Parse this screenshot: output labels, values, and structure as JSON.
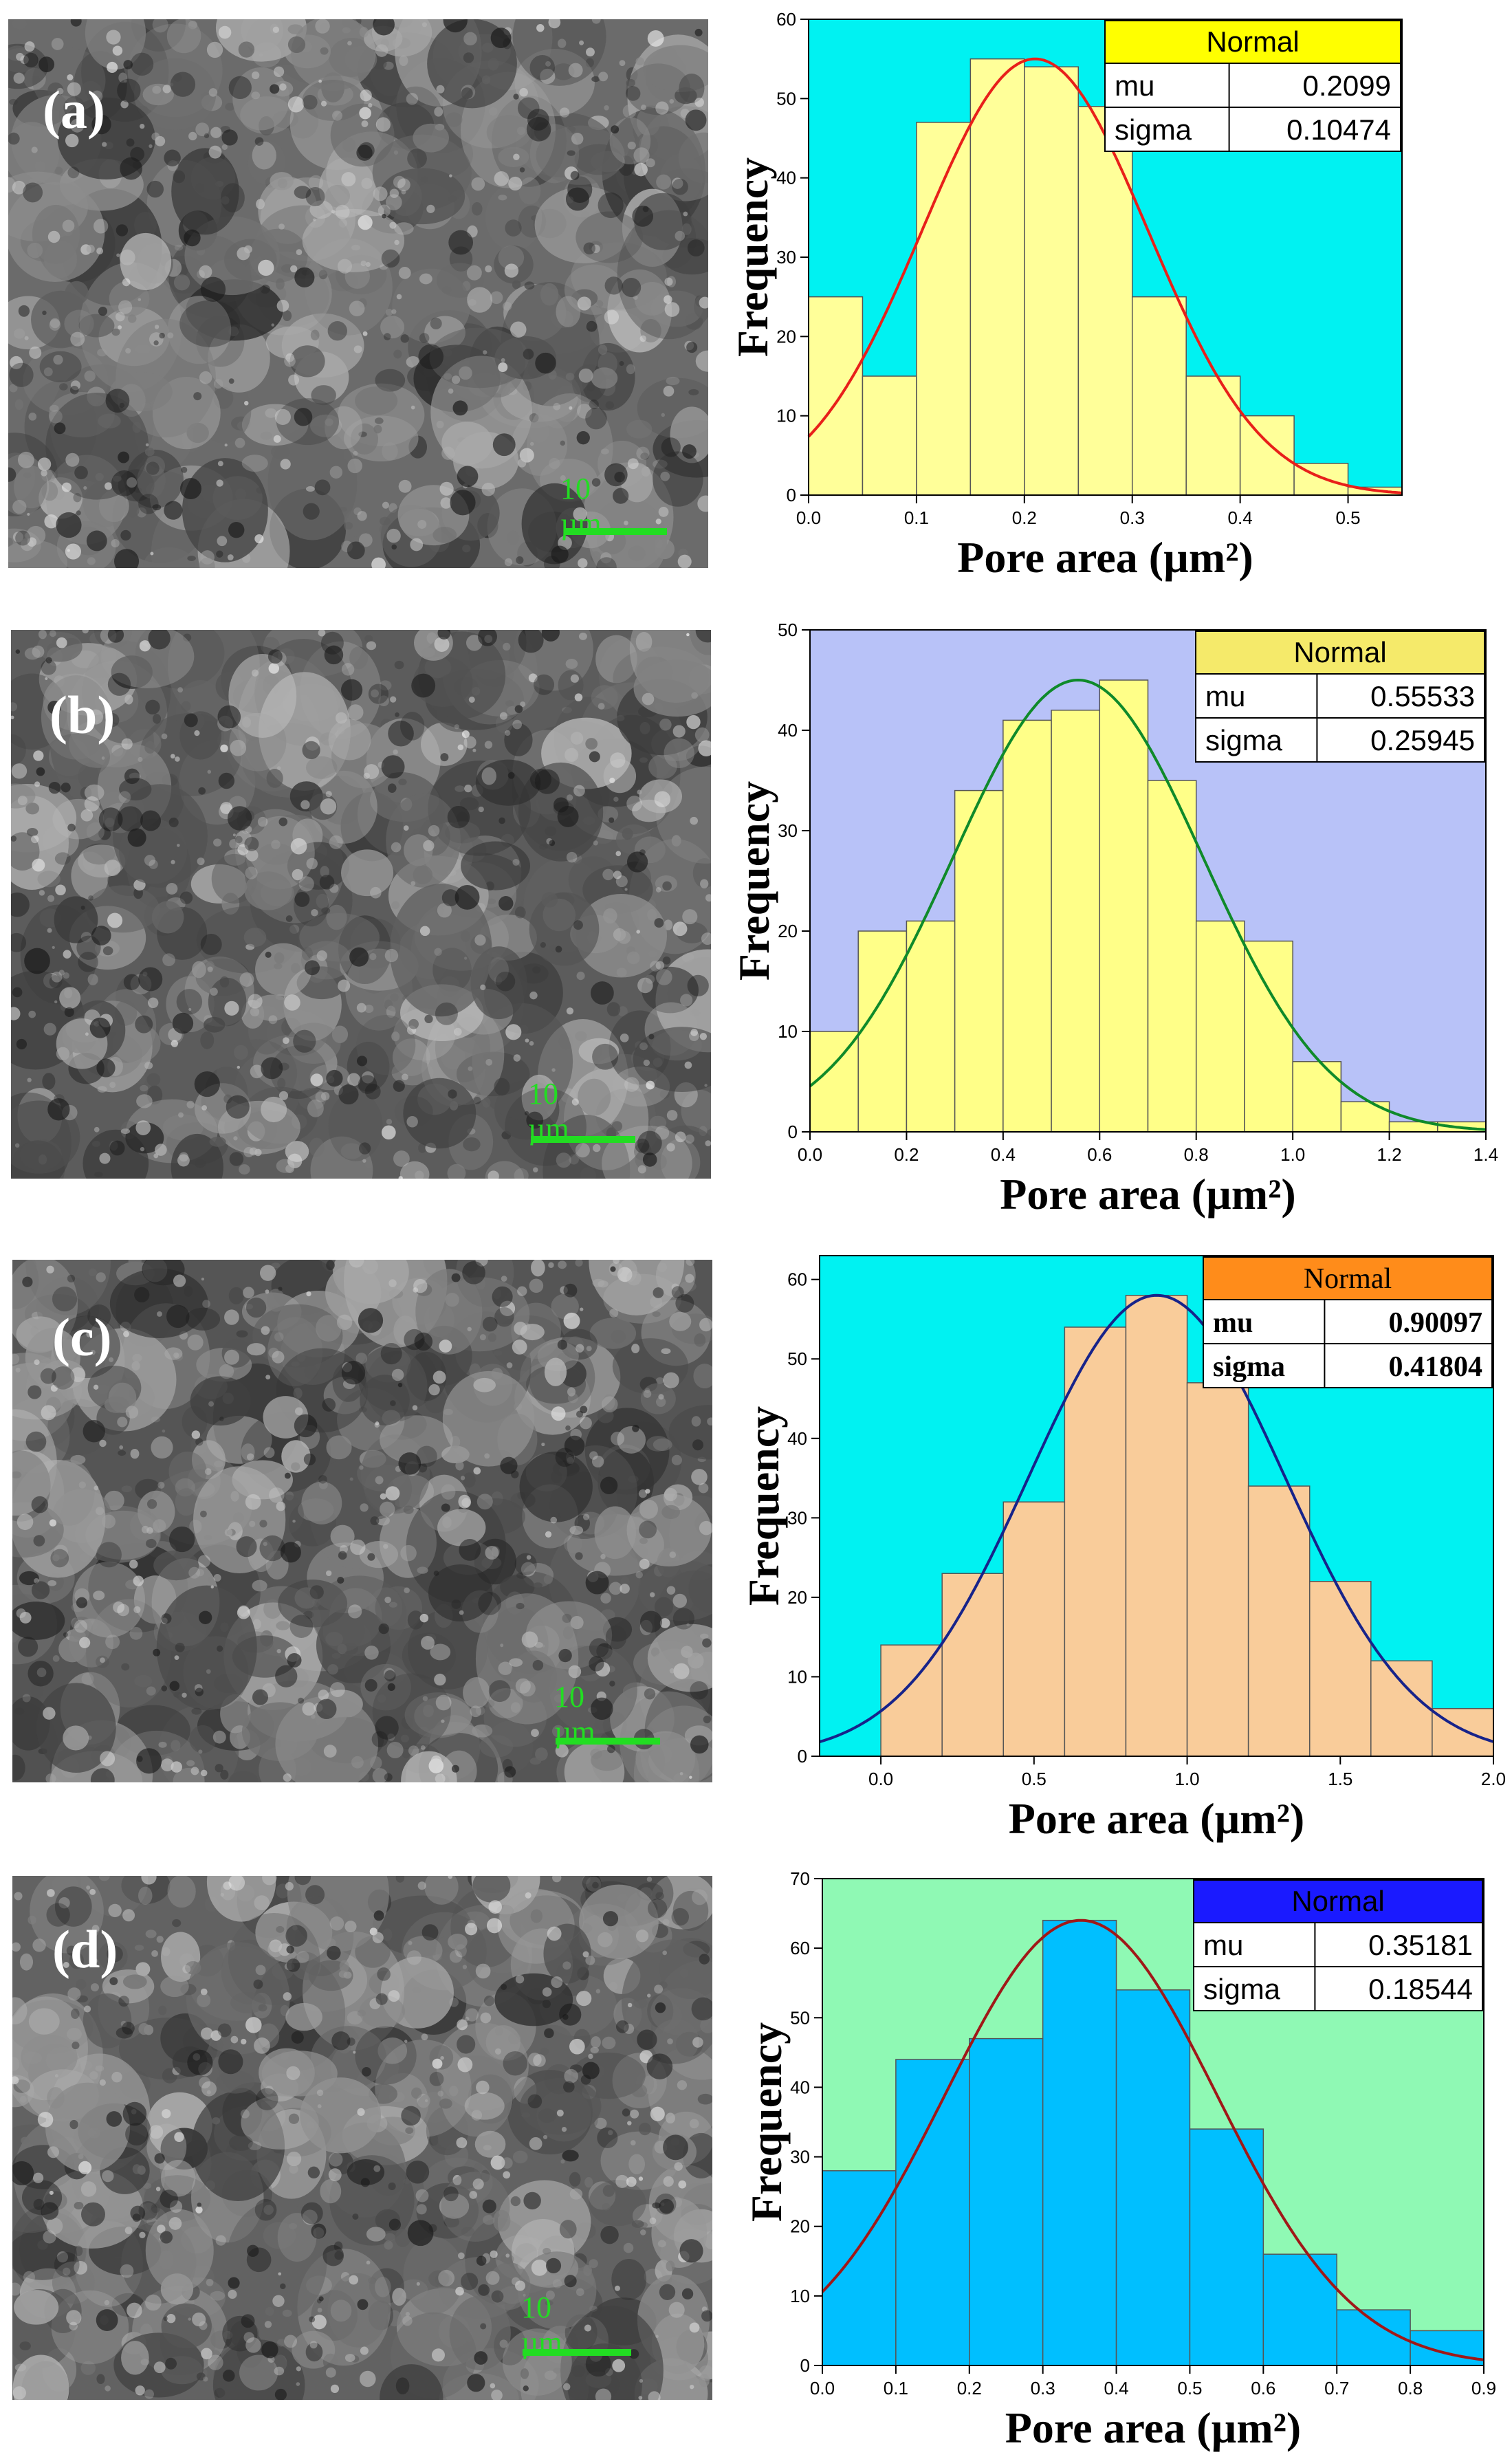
{
  "scale_bar_label": "10 µm",
  "panels": [
    {
      "label": "(a)",
      "sem_tone": "#6b6b6b",
      "chart_data": {
        "type": "bar",
        "x_tick_labels": [
          "0.0",
          "0.1",
          "0.2",
          "0.3",
          "0.4",
          "0.5"
        ],
        "x_ticks": [
          0.0,
          0.1,
          0.2,
          0.3,
          0.4,
          0.5
        ],
        "y_ticks": [
          0,
          10,
          20,
          30,
          40,
          50,
          60
        ],
        "xlim": [
          0.0,
          0.55
        ],
        "ylim": [
          0,
          60
        ],
        "bin_width": 0.05,
        "bin_starts": [
          0.0,
          0.05,
          0.1,
          0.15,
          0.2,
          0.25,
          0.3,
          0.35,
          0.4,
          0.45,
          0.5
        ],
        "values": [
          25,
          15,
          47,
          55,
          54,
          49,
          25,
          15,
          10,
          4,
          1
        ],
        "xlabel": "Pore area (µm²)",
        "ylabel": "Frequency",
        "fit": {
          "type": "normal",
          "mu": 0.2099,
          "sigma": 0.10474,
          "peak": 55
        },
        "legend": {
          "title": "Normal",
          "rows": [
            [
              "mu",
              "0.2099"
            ],
            [
              "sigma",
              "0.10474"
            ]
          ],
          "position": "top-right",
          "bold": false
        },
        "colors": {
          "plot_bg": "#00f2f2",
          "bar": "#ffff99",
          "curve": "#e8201a",
          "legend_header": "#ffff00"
        }
      }
    },
    {
      "label": "(b)",
      "sem_tone": "#5c5c5c",
      "chart_data": {
        "type": "bar",
        "x_tick_labels": [
          "0.0",
          "0.2",
          "0.4",
          "0.6",
          "0.8",
          "1.0",
          "1.2",
          "1.4"
        ],
        "x_ticks": [
          0.0,
          0.2,
          0.4,
          0.6,
          0.8,
          1.0,
          1.2,
          1.4
        ],
        "y_ticks": [
          0,
          10,
          20,
          30,
          40,
          50
        ],
        "xlim": [
          0.0,
          1.4
        ],
        "ylim": [
          0,
          50
        ],
        "bin_width": 0.1,
        "bin_starts": [
          0.0,
          0.1,
          0.2,
          0.3,
          0.4,
          0.5,
          0.6,
          0.7,
          0.8,
          0.9,
          1.0,
          1.1,
          1.2,
          1.3
        ],
        "values": [
          10,
          20,
          21,
          34,
          41,
          42,
          45,
          35,
          21,
          19,
          7,
          3,
          1,
          1
        ],
        "xlabel": "Pore area (µm²)",
        "ylabel": "Frequency",
        "fit": {
          "type": "normal",
          "mu": 0.55533,
          "sigma": 0.25945,
          "peak": 45
        },
        "legend": {
          "title": "Normal",
          "rows": [
            [
              "mu",
              "0.55533"
            ],
            [
              "sigma",
              "0.25945"
            ]
          ],
          "position": "top-right",
          "bold": false
        },
        "colors": {
          "plot_bg": "#b8c2f8",
          "bar": "#ffff88",
          "curve": "#0f8a2a",
          "legend_header": "#f5ea6a"
        }
      }
    },
    {
      "label": "(c)",
      "sem_tone": "#555555",
      "chart_data": {
        "type": "bar",
        "x_tick_labels": [
          "0.0",
          "0.5",
          "1.0",
          "1.5",
          "2.0"
        ],
        "x_ticks": [
          0.0,
          0.5,
          1.0,
          1.5,
          2.0
        ],
        "y_ticks": [
          0,
          10,
          20,
          30,
          40,
          50,
          60
        ],
        "xlim": [
          -0.2,
          2.0
        ],
        "ylim": [
          0,
          63
        ],
        "bin_width": 0.2,
        "bin_starts": [
          0.0,
          0.2,
          0.4,
          0.6,
          0.8,
          1.0,
          1.2,
          1.4,
          1.6,
          1.8
        ],
        "values": [
          14,
          23,
          32,
          54,
          58,
          47,
          34,
          22,
          12,
          6
        ],
        "xlabel": "Pore area (µm²)",
        "ylabel": "Frequency",
        "fit": {
          "type": "normal",
          "mu": 0.90097,
          "sigma": 0.41804,
          "peak": 58
        },
        "legend": {
          "title": "Normal",
          "rows": [
            [
              "mu",
              "0.90097"
            ],
            [
              "sigma",
              "0.41804"
            ]
          ],
          "position": "top-right",
          "bold": true
        },
        "colors": {
          "plot_bg": "#00f2f2",
          "bar": "#f9cc9a",
          "curve": "#17238a",
          "legend_header": "#ff8c1a"
        }
      }
    },
    {
      "label": "(d)",
      "sem_tone": "#626262",
      "chart_data": {
        "type": "bar",
        "x_tick_labels": [
          "0.0",
          "0.1",
          "0.2",
          "0.3",
          "0.4",
          "0.5",
          "0.6",
          "0.7",
          "0.8",
          "0.9"
        ],
        "x_ticks": [
          0.0,
          0.1,
          0.2,
          0.3,
          0.4,
          0.5,
          0.6,
          0.7,
          0.8,
          0.9
        ],
        "y_ticks": [
          0,
          10,
          20,
          30,
          40,
          50,
          60,
          70
        ],
        "xlim": [
          0.0,
          0.9
        ],
        "ylim": [
          0,
          70
        ],
        "bin_width": 0.1,
        "bin_starts": [
          0.0,
          0.1,
          0.2,
          0.3,
          0.4,
          0.5,
          0.6,
          0.7,
          0.8
        ],
        "values": [
          28,
          44,
          47,
          64,
          54,
          34,
          16,
          8,
          5
        ],
        "xlabel": "Pore area (µm²)",
        "ylabel": "Frequency",
        "fit": {
          "type": "normal",
          "mu": 0.35181,
          "sigma": 0.18544,
          "peak": 64
        },
        "legend": {
          "title": "Normal",
          "rows": [
            [
              "mu",
              "0.35181"
            ],
            [
              "sigma",
              "0.18544"
            ]
          ],
          "position": "top-right",
          "bold": false
        },
        "colors": {
          "plot_bg": "#8ff9b4",
          "bar": "#00bfff",
          "curve": "#a01818",
          "legend_header": "#1a1aff"
        }
      }
    }
  ]
}
